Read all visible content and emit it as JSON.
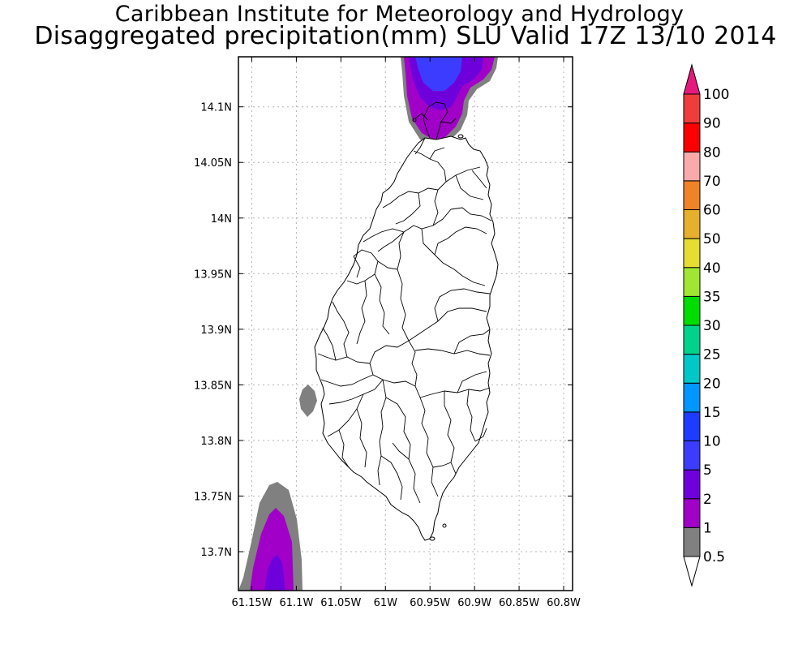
{
  "title": {
    "line1": "Caribbean Institute for Meteorology and Hydrology",
    "line2": "Disaggregated precipitation(mm) SLU Valid 17Z 13/10 2014"
  },
  "map": {
    "lon_range": [
      -61.165,
      -60.79
    ],
    "lat_range": [
      13.665,
      14.145
    ],
    "x_ticks": [
      {
        "lon": -61.15,
        "label": "61.15W"
      },
      {
        "lon": -61.1,
        "label": "61.1W"
      },
      {
        "lon": -61.05,
        "label": "61.05W"
      },
      {
        "lon": -61.0,
        "label": "61W"
      },
      {
        "lon": -60.95,
        "label": "60.95W"
      },
      {
        "lon": -60.9,
        "label": "60.9W"
      },
      {
        "lon": -60.85,
        "label": "60.85W"
      },
      {
        "lon": -60.8,
        "label": "60.8W"
      }
    ],
    "y_ticks": [
      {
        "lat": 14.1,
        "label": "14.1N"
      },
      {
        "lat": 14.05,
        "label": "14.05N"
      },
      {
        "lat": 14.0,
        "label": "14N"
      },
      {
        "lat": 13.95,
        "label": "13.95N"
      },
      {
        "lat": 13.9,
        "label": "13.9N"
      },
      {
        "lat": 13.85,
        "label": "13.85N"
      },
      {
        "lat": 13.8,
        "label": "13.8N"
      },
      {
        "lat": 13.75,
        "label": "13.75N"
      },
      {
        "lat": 13.7,
        "label": "13.7N"
      }
    ],
    "grid": true
  },
  "legend": {
    "unit": "mm",
    "levels": [
      {
        "label": "0.5",
        "color": "#ffffff"
      },
      {
        "label": "1",
        "color": "#808080"
      },
      {
        "label": "2",
        "color": "#a000c8"
      },
      {
        "label": "5",
        "color": "#6e00dc"
      },
      {
        "label": "10",
        "color": "#3c3cff"
      },
      {
        "label": "15",
        "color": "#1e3cff"
      },
      {
        "label": "20",
        "color": "#0096ff"
      },
      {
        "label": "25",
        "color": "#00c8c8"
      },
      {
        "label": "30",
        "color": "#00d28c"
      },
      {
        "label": "35",
        "color": "#00dc00"
      },
      {
        "label": "40",
        "color": "#a0e632"
      },
      {
        "label": "50",
        "color": "#e6dc32"
      },
      {
        "label": "60",
        "color": "#e6af2d"
      },
      {
        "label": "70",
        "color": "#f08228"
      },
      {
        "label": "80",
        "color": "#faaaaa"
      },
      {
        "label": "90",
        "color": "#fa0000"
      },
      {
        "label": "100",
        "color": "#f03c3c"
      }
    ],
    "max_color": "#e6197d"
  }
}
